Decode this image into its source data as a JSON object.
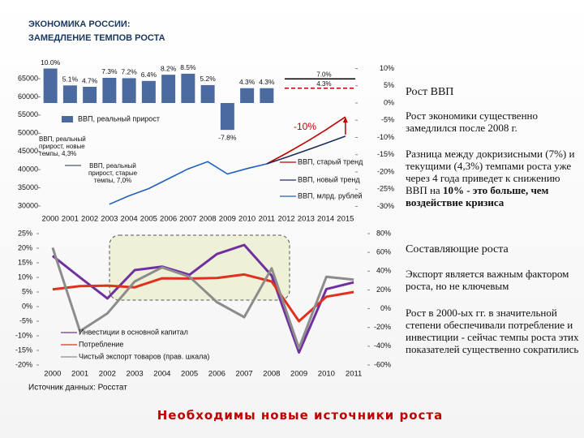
{
  "chart_data": [
    {
      "type": "bar-line",
      "title": "ЭКОНОМИКА РОССИИ:",
      "subtitle": "ЗАМЕДЛЕНИЕ ТЕМПОВ РОСТА",
      "categories": [
        "2000",
        "2001",
        "2002",
        "2003",
        "2004",
        "2005",
        "2006",
        "2007",
        "2008",
        "2009",
        "2010",
        "2011",
        "2012",
        "2013",
        "2014",
        "2015"
      ],
      "ylim": [
        30000,
        65000
      ],
      "yticks": [
        30000,
        35000,
        40000,
        45000,
        50000,
        55000,
        60000,
        65000
      ],
      "y2lim": [
        -30,
        10
      ],
      "y2ticks": [
        {
          "value": 10,
          "label": "10%"
        },
        {
          "value": 5,
          "label": "5%"
        },
        {
          "value": 0,
          "label": "0%"
        },
        {
          "value": -5,
          "label": "-5%"
        },
        {
          "value": -10,
          "label": "-10%"
        },
        {
          "value": -15,
          "label": "-15%"
        },
        {
          "value": -20,
          "label": "-20%"
        },
        {
          "value": -25,
          "label": "-25%"
        },
        {
          "value": -30,
          "label": "-30%"
        }
      ],
      "series": [
        {
          "name": "ВВП, реальный прирост",
          "type": "bar",
          "axis": "y2",
          "color": "#4a6aa0",
          "values": [
            10.0,
            5.1,
            4.7,
            7.3,
            7.2,
            6.4,
            8.2,
            8.5,
            5.2,
            -7.8,
            4.3,
            4.3,
            null,
            null,
            null,
            null
          ],
          "value_labels": [
            "10.0%",
            "5.1%",
            "4.7%",
            "7.3%",
            "7.2%",
            "6.4%",
            "8.2%",
            "8.5%",
            "5.2%",
            "-7.8%",
            "4.3%",
            "4.3%",
            null,
            null,
            null,
            null
          ]
        },
        {
          "name": "ВВП, старый тренд",
          "type": "line",
          "color": "#c00000",
          "values": [
            null,
            null,
            null,
            null,
            null,
            null,
            null,
            null,
            null,
            null,
            null,
            41600,
            44500,
            47600,
            50900,
            54500
          ]
        },
        {
          "name": "ВВП, новый тренд",
          "type": "line",
          "color": "#1f2d5a",
          "values": [
            null,
            null,
            null,
            null,
            null,
            null,
            null,
            null,
            null,
            null,
            null,
            41600,
            43400,
            45300,
            47200,
            49200
          ]
        },
        {
          "name": "ВВП, млрд. рублей",
          "type": "line",
          "color": "#1f5fbf",
          "values": [
            null,
            null,
            null,
            30500,
            32800,
            34800,
            37500,
            40200,
            42200,
            38800,
            40300,
            41600,
            null,
            null,
            null,
            null
          ]
        }
      ],
      "reference_lines": [
        {
          "label": "7.0%",
          "value": 7.0,
          "color": "#000000"
        },
        {
          "label": "4.3%",
          "value": 4.3,
          "color": "#c00000"
        }
      ],
      "annotations": [
        "ВВП, реальный прирост, новые темпы, 4,3%",
        "ВВП, реальный прирост, старые темпы, 7,0%",
        "-10%"
      ]
    },
    {
      "type": "line",
      "categories": [
        "2000",
        "2001",
        "2002",
        "2003",
        "2004",
        "2005",
        "2006",
        "2007",
        "2008",
        "2009",
        "2010",
        "2011"
      ],
      "ylim": [
        -20,
        25
      ],
      "yticks": [
        {
          "value": 25,
          "label": "25%"
        },
        {
          "value": 20,
          "label": "20%"
        },
        {
          "value": 15,
          "label": "15%"
        },
        {
          "value": 10,
          "label": "10%"
        },
        {
          "value": 5,
          "label": "5%"
        },
        {
          "value": 0,
          "label": "0%"
        },
        {
          "value": -5,
          "label": "-5%"
        },
        {
          "value": -10,
          "label": "-10%"
        },
        {
          "value": -15,
          "label": "-15%"
        },
        {
          "value": -20,
          "label": "-20%"
        }
      ],
      "y2lim": [
        -60,
        80
      ],
      "y2ticks": [
        {
          "value": 80,
          "label": "80%"
        },
        {
          "value": 60,
          "label": "60%"
        },
        {
          "value": 40,
          "label": "40%"
        },
        {
          "value": 20,
          "label": "20%"
        },
        {
          "value": 0,
          "label": "0%"
        },
        {
          "value": -20,
          "label": "-20%"
        },
        {
          "value": -40,
          "label": "-40%"
        },
        {
          "value": -60,
          "label": "-60%"
        }
      ],
      "series": [
        {
          "name": "Инвестиции в основной капитал",
          "color": "#7030a0",
          "values": [
            17.4,
            10.0,
            2.8,
            12.5,
            13.7,
            10.9,
            18.0,
            21.1,
            10.6,
            -15.7,
            6.0,
            8.3
          ]
        },
        {
          "name": "Потребление",
          "color": "#e0301e",
          "values": [
            5.9,
            7.0,
            7.2,
            6.6,
            9.7,
            9.6,
            9.8,
            11.0,
            8.6,
            -5.0,
            3.4,
            5.0
          ]
        },
        {
          "name": "Чистый экспорт товаров (прав. шкала)",
          "color": "#8c8c8c",
          "axis": "y2",
          "values": [
            65,
            -24,
            -5,
            29,
            44,
            34,
            7,
            -9,
            43,
            -42,
            34,
            31
          ]
        }
      ],
      "source": "Источник данных: Росстат"
    }
  ],
  "sidebar": [
    {
      "heading": "Рост ВВП",
      "paragraphs": [
        {
          "text": "Рост экономики существенно замедлился после 2008 г."
        },
        {
          "text": "Разница между докризисными (7%) и текущими (4,3%) темпами роста уже через 4 года приведет к снижению ВВП на",
          "emphasis": "10% - это больше, чем воздействие кризиса"
        }
      ]
    },
    {
      "heading": "Составляющие роста",
      "paragraphs": [
        {
          "text": "Экспорт является важным фактором роста, но не ключевым"
        },
        {
          "text": "Рост в 2000-ых гг. в значительной степени обеспечивали потребление и инвестиции - сейчас темпы роста этих показателей существенно сократились"
        }
      ]
    }
  ],
  "footer": "Необходимы новые источники роста"
}
